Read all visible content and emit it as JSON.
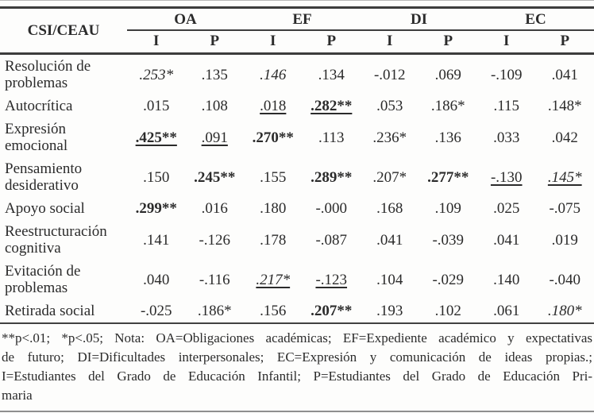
{
  "table": {
    "corner_header": "CSI/CEAU",
    "groups": [
      {
        "label": "OA"
      },
      {
        "label": "EF"
      },
      {
        "label": "DI"
      },
      {
        "label": "EC"
      }
    ],
    "subheaders": [
      "I",
      "P",
      "I",
      "P",
      "I",
      "P",
      "I",
      "P"
    ],
    "rows": [
      {
        "label": "Resolución de problemas",
        "cells": [
          {
            "v": ".253*",
            "i": true
          },
          {
            "v": ".135"
          },
          {
            "v": ".146",
            "i": true
          },
          {
            "v": ".134"
          },
          {
            "v": "-.012"
          },
          {
            "v": ".069"
          },
          {
            "v": "-.109"
          },
          {
            "v": ".041"
          }
        ]
      },
      {
        "label": "Autocrítica",
        "cells": [
          {
            "v": ".015"
          },
          {
            "v": ".108"
          },
          {
            "v": ".018",
            "u": true
          },
          {
            "v": ".282**",
            "b": true,
            "u": true
          },
          {
            "v": ".053"
          },
          {
            "v": ".186*"
          },
          {
            "v": ".115"
          },
          {
            "v": ".148*"
          }
        ]
      },
      {
        "label": "Expresión emocional",
        "cells": [
          {
            "v": ".425**",
            "b": true,
            "u": true
          },
          {
            "v": ".091",
            "u": true
          },
          {
            "v": ".270**",
            "b": true
          },
          {
            "v": ".113"
          },
          {
            "v": ".236*"
          },
          {
            "v": ".136"
          },
          {
            "v": ".033"
          },
          {
            "v": ".042"
          }
        ]
      },
      {
        "label": "Pensamiento desiderativo",
        "cells": [
          {
            "v": ".150"
          },
          {
            "v": ".245**",
            "b": true
          },
          {
            "v": ".155"
          },
          {
            "v": ".289**",
            "b": true
          },
          {
            "v": ".207*"
          },
          {
            "v": ".277**",
            "b": true
          },
          {
            "v": "-.130",
            "u": true
          },
          {
            "v": ".145*",
            "i": true,
            "u": true
          }
        ]
      },
      {
        "label": "Apoyo social",
        "cells": [
          {
            "v": ".299**",
            "b": true
          },
          {
            "v": ".016"
          },
          {
            "v": ".180"
          },
          {
            "v": "-.000"
          },
          {
            "v": ".168"
          },
          {
            "v": ".109"
          },
          {
            "v": ".025"
          },
          {
            "v": "-.075"
          }
        ]
      },
      {
        "label": "Reestructuración cognitiva",
        "cells": [
          {
            "v": ".141"
          },
          {
            "v": "-.126"
          },
          {
            "v": ".178"
          },
          {
            "v": "-.087"
          },
          {
            "v": ".041"
          },
          {
            "v": "-.039"
          },
          {
            "v": ".041"
          },
          {
            "v": ".019"
          }
        ]
      },
      {
        "label": "Evitación de problemas",
        "cells": [
          {
            "v": ".040"
          },
          {
            "v": "-.116"
          },
          {
            "v": ".217*",
            "i": true,
            "u": true
          },
          {
            "v": "-.123",
            "u": true
          },
          {
            "v": ".104"
          },
          {
            "v": "-.029"
          },
          {
            "v": ".140"
          },
          {
            "v": "-.040"
          }
        ]
      },
      {
        "label": "Retirada social",
        "cells": [
          {
            "v": "-.025"
          },
          {
            "v": ".186*"
          },
          {
            "v": ".156"
          },
          {
            "v": ".207**",
            "b": true
          },
          {
            "v": ".193"
          },
          {
            "v": ".102"
          },
          {
            "v": ".061"
          },
          {
            "v": ".180*",
            "i": true
          }
        ]
      }
    ]
  },
  "footnote": {
    "lines": [
      "**p<.01; *p<.05; Nota: OA=Obligaciones académicas; EF=Expediente académico y expectativas",
      "de futuro; DI=Dificultades interpersonales; EC=Expresión y comunicación de ideas propias.;",
      "I=Estudiantes del Grado de Educación Infantil; P=Estudiantes del Grado de Educación Pri-",
      "maria"
    ]
  },
  "colors": {
    "text": "#2b2b2b",
    "rule_dark": "#3c3c3c",
    "rule_light": "#b9b9b9",
    "background": "#fdfdfc"
  }
}
